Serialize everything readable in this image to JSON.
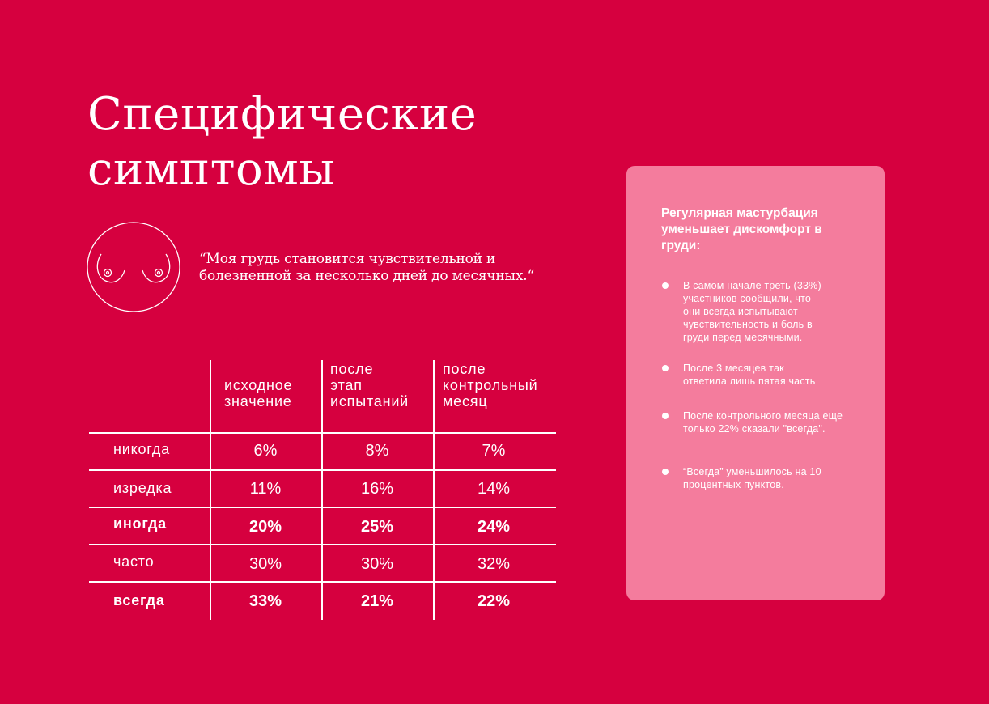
{
  "title": {
    "line1": "Специфические",
    "line2": "симптомы"
  },
  "quote": {
    "line1": "“Моя грудь становится чувствительной и",
    "line2": "болезненной за несколько дней до месячных.“"
  },
  "icons": {
    "breast": "breast-outline-icon"
  },
  "table": {
    "headers": [
      [
        "исходное",
        "значение"
      ],
      [
        "после",
        "этап",
        "испытаний"
      ],
      [
        "после",
        "контрольный",
        "месяц"
      ]
    ],
    "rows": [
      {
        "label": "никогда",
        "values": [
          "6%",
          "8%",
          "7%"
        ],
        "bold": false
      },
      {
        "label": "изредка",
        "values": [
          "11%",
          "16%",
          "14%"
        ],
        "bold": false
      },
      {
        "label": "иногда",
        "values": [
          "20%",
          "25%",
          "24%"
        ],
        "bold": true
      },
      {
        "label": "часто",
        "values": [
          "30%",
          "30%",
          "32%"
        ],
        "bold": false
      },
      {
        "label": "всегда",
        "values": [
          "33%",
          "21%",
          "22%"
        ],
        "bold": true
      }
    ]
  },
  "panel": {
    "title": [
      "Регулярная мастурбация",
      "уменьшает дискомфорт в",
      "груди:"
    ],
    "bullets": [
      [
        "В самом начале треть (33%)",
        "участников сообщили, что",
        "они всегда испытывают",
        "чувствительность и боль в",
        "груди перед месячными."
      ],
      [
        "После 3 месяцев так",
        "ответила лишь пятая часть"
      ],
      [
        "После контрольного месяца еще",
        "только 22% сказали \"всегда\"."
      ],
      [
        "“Всегда” уменьшилось на 10",
        "процентных пунктов."
      ]
    ]
  },
  "colors": {
    "background": "#d6003f",
    "panel": "#f47c9d",
    "text": "#ffffff"
  }
}
